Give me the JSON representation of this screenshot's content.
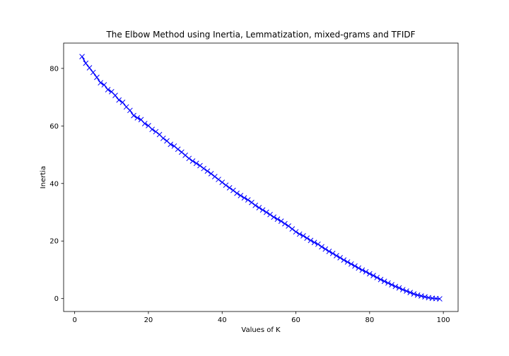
{
  "chart_data": {
    "type": "line",
    "title": "The Elbow Method using Inertia, Lemmatization, mixed-grams and TFIDF",
    "xlabel": "Values of K",
    "ylabel": "Inertia",
    "xlim": [
      -3,
      104
    ],
    "ylim": [
      -4.5,
      88.8
    ],
    "xticks": [
      "0",
      "20",
      "40",
      "60",
      "80",
      "100"
    ],
    "yticks": [
      "0",
      "20",
      "40",
      "60",
      "80"
    ],
    "grid": false,
    "series": [
      {
        "marker": "x",
        "color": "#0000ff",
        "x": [
          2,
          3,
          4,
          5,
          6,
          7,
          8,
          9,
          10,
          11,
          12,
          13,
          14,
          15,
          16,
          17,
          18,
          19,
          20,
          21,
          22,
          23,
          24,
          25,
          26,
          27,
          28,
          29,
          30,
          31,
          32,
          33,
          34,
          35,
          36,
          37,
          38,
          39,
          40,
          41,
          42,
          43,
          44,
          45,
          46,
          47,
          48,
          49,
          50,
          51,
          52,
          53,
          54,
          55,
          56,
          57,
          58,
          59,
          60,
          61,
          62,
          63,
          64,
          65,
          66,
          67,
          68,
          69,
          70,
          71,
          72,
          73,
          74,
          75,
          76,
          77,
          78,
          79,
          80,
          81,
          82,
          83,
          84,
          85,
          86,
          87,
          88,
          89,
          90,
          91,
          92,
          93,
          94,
          95,
          96,
          97,
          98,
          99
        ],
        "values": [
          84.1,
          81.8,
          80.2,
          78.6,
          76.9,
          75.0,
          74.3,
          72.6,
          71.9,
          70.6,
          69.0,
          68.2,
          66.6,
          65.4,
          63.6,
          62.8,
          62.2,
          60.8,
          60.1,
          58.8,
          58.0,
          57.0,
          55.7,
          54.8,
          53.6,
          53.0,
          51.9,
          50.9,
          49.8,
          48.7,
          47.8,
          47.0,
          46.2,
          45.2,
          44.3,
          43.4,
          42.4,
          41.4,
          40.4,
          39.4,
          38.5,
          37.6,
          36.6,
          35.8,
          35.0,
          34.3,
          33.4,
          32.4,
          31.6,
          30.8,
          30.0,
          29.2,
          28.3,
          27.6,
          26.9,
          26.0,
          25.2,
          24.2,
          23.2,
          22.4,
          21.8,
          21.0,
          20.2,
          19.5,
          18.9,
          18.0,
          17.2,
          16.4,
          15.7,
          14.9,
          14.2,
          13.4,
          12.7,
          12.0,
          11.3,
          10.6,
          9.9,
          9.3,
          8.6,
          8.0,
          7.3,
          6.6,
          6.0,
          5.4,
          4.8,
          4.2,
          3.7,
          3.1,
          2.6,
          2.1,
          1.6,
          1.2,
          0.9,
          0.6,
          0.3,
          0.1,
          0.0,
          -0.1
        ]
      }
    ]
  }
}
